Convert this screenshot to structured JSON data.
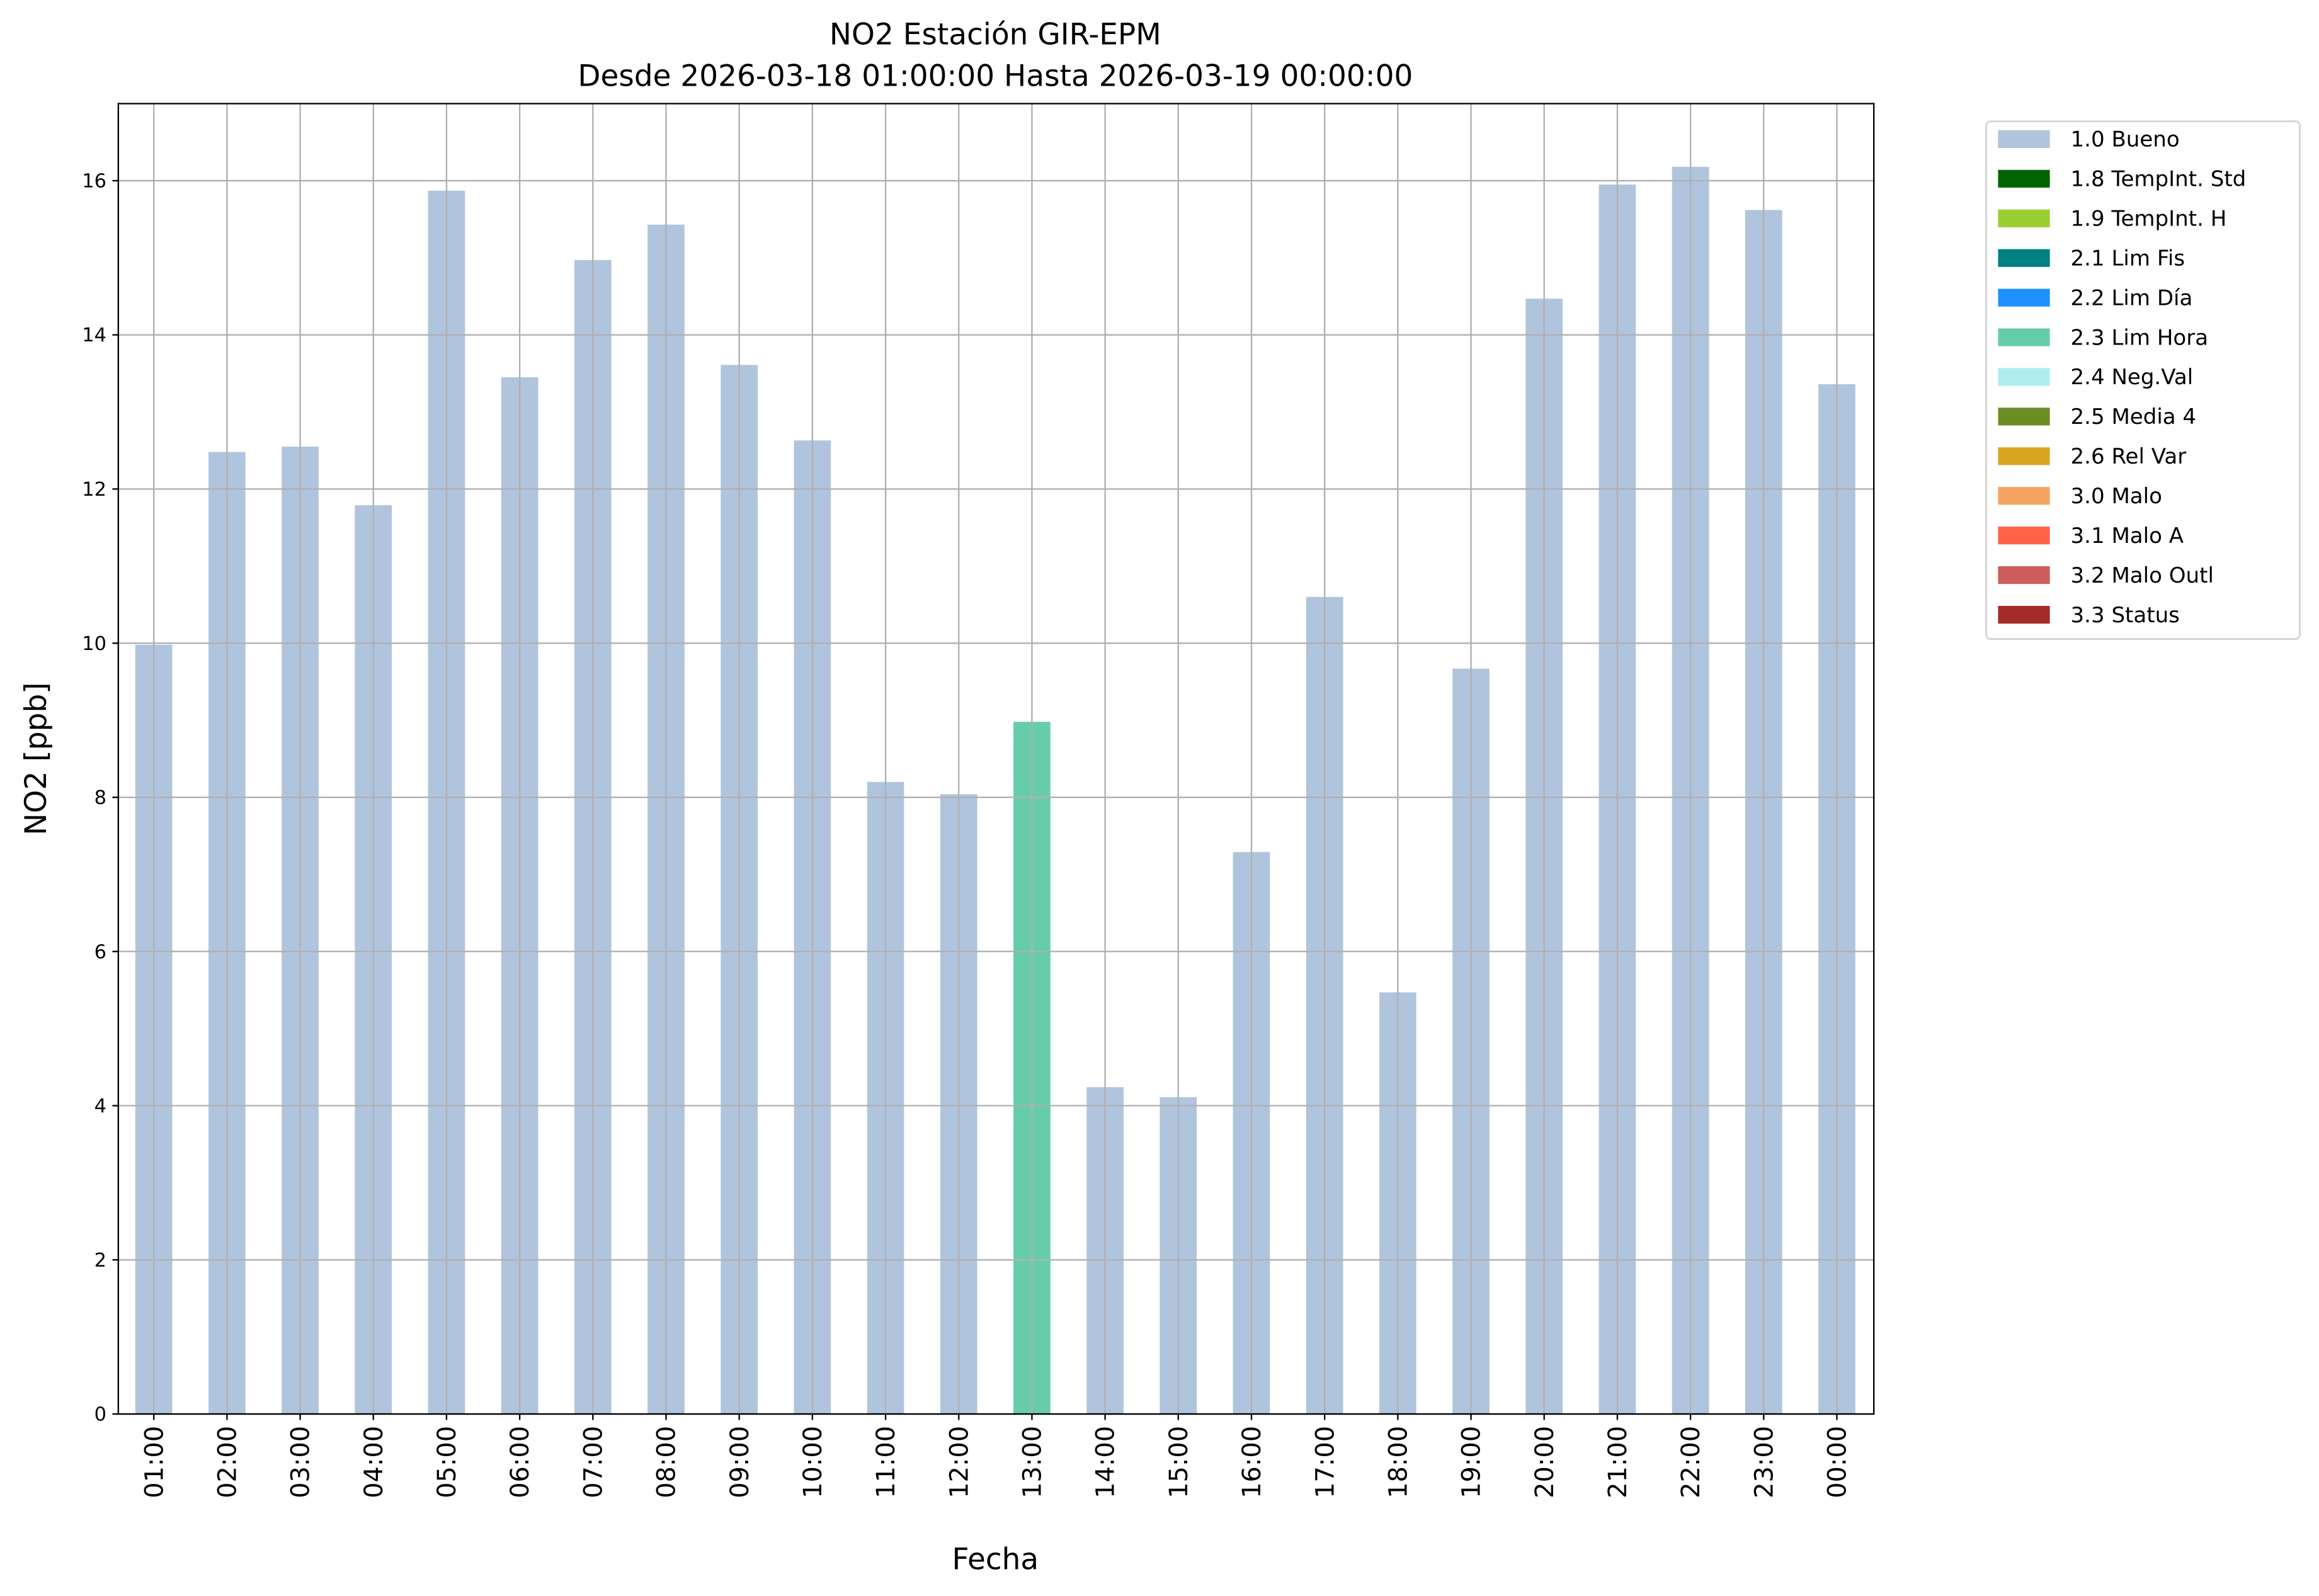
{
  "chart_data": {
    "type": "bar",
    "title": "NO2 Estación GIR-EPM",
    "subtitle": "Desde 2026-03-18 01:00:00 Hasta 2026-03-19 00:00:00",
    "xlabel": "Fecha",
    "ylabel": "NO2 [ppb]",
    "ylim": [
      0,
      17
    ],
    "yticks": [
      0,
      2,
      4,
      6,
      8,
      10,
      12,
      14,
      16
    ],
    "grid": true,
    "legend_position": "outside-top-right",
    "categories": [
      "01:00",
      "02:00",
      "03:00",
      "04:00",
      "05:00",
      "06:00",
      "07:00",
      "08:00",
      "09:00",
      "10:00",
      "11:00",
      "12:00",
      "13:00",
      "14:00",
      "15:00",
      "16:00",
      "17:00",
      "18:00",
      "19:00",
      "20:00",
      "21:00",
      "22:00",
      "23:00",
      "00:00"
    ],
    "values": [
      9.98,
      12.48,
      12.55,
      11.79,
      15.87,
      13.45,
      14.97,
      15.43,
      13.61,
      12.63,
      8.2,
      8.04,
      8.98,
      4.24,
      4.11,
      7.29,
      10.6,
      5.47,
      9.67,
      14.47,
      15.95,
      16.18,
      15.62,
      13.36
    ],
    "flags": [
      "1.0 Bueno",
      "1.0 Bueno",
      "1.0 Bueno",
      "1.0 Bueno",
      "1.0 Bueno",
      "1.0 Bueno",
      "1.0 Bueno",
      "1.0 Bueno",
      "1.0 Bueno",
      "1.0 Bueno",
      "1.0 Bueno",
      "1.0 Bueno",
      "2.3 Lim Hora",
      "1.0 Bueno",
      "1.0 Bueno",
      "1.0 Bueno",
      "1.0 Bueno",
      "1.0 Bueno",
      "1.0 Bueno",
      "1.0 Bueno",
      "1.0 Bueno",
      "1.0 Bueno",
      "1.0 Bueno",
      "1.0 Bueno"
    ],
    "legend": [
      {
        "label": "1.0 Bueno",
        "color": "#b0c4de"
      },
      {
        "label": "1.8 TempInt. Std",
        "color": "#006400"
      },
      {
        "label": "1.9 TempInt. H",
        "color": "#9acd32"
      },
      {
        "label": "2.1 Lim Fis",
        "color": "#008080"
      },
      {
        "label": "2.2 Lim Día",
        "color": "#1e90ff"
      },
      {
        "label": "2.3 Lim Hora",
        "color": "#66cdaa"
      },
      {
        "label": "2.4 Neg.Val",
        "color": "#afeeee"
      },
      {
        "label": "2.5 Media 4",
        "color": "#6b8e23"
      },
      {
        "label": "2.6 Rel Var",
        "color": "#daa520"
      },
      {
        "label": "3.0 Malo",
        "color": "#f4a460"
      },
      {
        "label": "3.1 Malo A",
        "color": "#ff6347"
      },
      {
        "label": "3.2 Malo Outl",
        "color": "#cd5c5c"
      },
      {
        "label": "3.3 Status",
        "color": "#a52a2a"
      }
    ]
  }
}
